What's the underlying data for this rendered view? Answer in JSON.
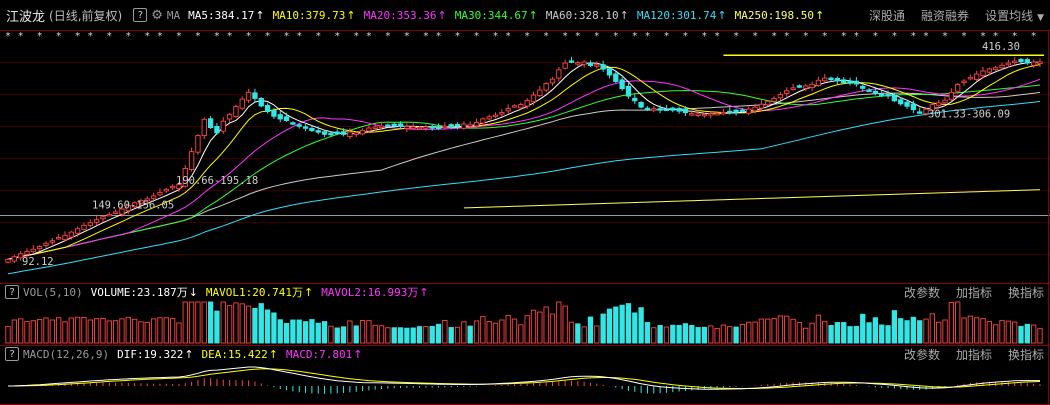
{
  "header": {
    "stock_name": "江波龙",
    "mode": "(日线,前复权)",
    "help_icon": "?",
    "settings_icon": "gear-icon",
    "ma_label": "MA",
    "indicators": [
      {
        "label": "MA5:384.17",
        "color": "#ffffff",
        "arrow": "↑"
      },
      {
        "label": "MA10:379.73",
        "color": "#ffff00",
        "arrow": "↑"
      },
      {
        "label": "MA20:353.36",
        "color": "#ff33ff",
        "arrow": "↑"
      },
      {
        "label": "MA30:344.67",
        "color": "#33ff33",
        "arrow": "↑"
      },
      {
        "label": "MA60:328.10",
        "color": "#cccccc",
        "arrow": "↑"
      },
      {
        "label": "MA120:301.74",
        "color": "#33ddff",
        "arrow": "↑"
      },
      {
        "label": "MA250:198.50",
        "color": "#ffff66",
        "arrow": "↑"
      }
    ],
    "menu": [
      "深股通",
      "融资融券",
      "设置均线"
    ]
  },
  "price_annotations": {
    "high": "416.30",
    "mid": "301.33-306.09",
    "left1": "190.66-195.18",
    "left2": "149.60-156.05",
    "low": "92.12"
  },
  "volume_panel": {
    "help_icon": "?",
    "name": "VOL(5,10)",
    "values": [
      {
        "label": "VOLUME:23.187万",
        "color": "#ffffff",
        "arrow": "↓"
      },
      {
        "label": "MAVOL1:20.741万",
        "color": "#ffff00",
        "arrow": "↑"
      },
      {
        "label": "MAVOL2:16.993万",
        "color": "#ff33ff",
        "arrow": "↑"
      }
    ],
    "actions": [
      "改参数",
      "加指标",
      "换指标"
    ]
  },
  "macd_panel": {
    "help_icon": "?",
    "name": "MACD(12,26,9)",
    "values": [
      {
        "label": "DIF:19.322",
        "color": "#ffffff",
        "arrow": "↑"
      },
      {
        "label": "DEA:15.422",
        "color": "#ffff00",
        "arrow": "↑"
      },
      {
        "label": "MACD:7.801",
        "color": "#ff33ff",
        "arrow": "↑"
      }
    ],
    "actions": [
      "改参数",
      "加指标",
      "换指标"
    ]
  },
  "colors": {
    "up": "#ff4444",
    "down": "#33e6e6",
    "ma5": "#ffffff",
    "ma10": "#ffff00",
    "ma20": "#ff33ff",
    "ma30": "#33ff33",
    "ma60": "#cccccc",
    "ma120": "#33ddff",
    "ma250": "#ffff66",
    "resistance": "#ffff00"
  },
  "chart_data": {
    "type": "candlestick",
    "title": "江波龙 (日线,前复权)",
    "y_min": 92.12,
    "y_max": 416.3,
    "resistance_level": 394,
    "closes": [
      96.0,
      99.8,
      104.1,
      107.2,
      110.7,
      114.7,
      119.4,
      123.2,
      128.0,
      131.0,
      135.7,
      140.7,
      145.6,
      149.4,
      153.8,
      158.3,
      161.7,
      165.2,
      169.5,
      174.5,
      178.6,
      181.6,
      184.3,
      188.6,
      193.4,
      198.2,
      202.7,
      205.2,
      228.7,
      253.3,
      276.7,
      300.5,
      288.4,
      280.7,
      297.7,
      307.8,
      319.1,
      330.0,
      339.9,
      331.0,
      320.0,
      311.8,
      304.9,
      301.0,
      298.7,
      294.9,
      291.1,
      288.0,
      284.0,
      281.6,
      278.5,
      279.6,
      279.3,
      278.5,
      281.9,
      280.7,
      284.3,
      287.8,
      289.3,
      290.6,
      291.0,
      290.6,
      290.2,
      290.0,
      289.7,
      288.8,
      289.7,
      288.7,
      286.8,
      290.4,
      289.9,
      290.5,
      293.5,
      292.4,
      295.8,
      301.1,
      304.2,
      306.6,
      310.4,
      316.2,
      320.4,
      322.1,
      327.8,
      335.9,
      343.2,
      352.7,
      359.1,
      372.7,
      382.6,
      385.4,
      383.3,
      384.1,
      379.0,
      380.2,
      373.8,
      365.2,
      355.7,
      345.4,
      334.4,
      327.5,
      318.3,
      315.6,
      316.0,
      314.6,
      315.3,
      313.8,
      312.4,
      310.2,
      308.8,
      308.3,
      307.7,
      308.9,
      309.0,
      310.6,
      311.5,
      310.8,
      312.6,
      315.4,
      318.3,
      322.5,
      326.7,
      331.1,
      336.7,
      342.2,
      346.3,
      349.0,
      349.2,
      351.6,
      357.5,
      360.7,
      359.3,
      356.6,
      353.9,
      353.0,
      352.0,
      345.7,
      343.1,
      338.3,
      336.7,
      335.4,
      327.5,
      323.1,
      319.6,
      314.6,
      311.1,
      315.3,
      321.8,
      324.6,
      328.4,
      339.9,
      351.6,
      356.3,
      361.8,
      366.6,
      371.0,
      374.1,
      375.8,
      379.3,
      382.6,
      385.5,
      384.5,
      382.6,
      384.2,
      384.2
    ]
  }
}
